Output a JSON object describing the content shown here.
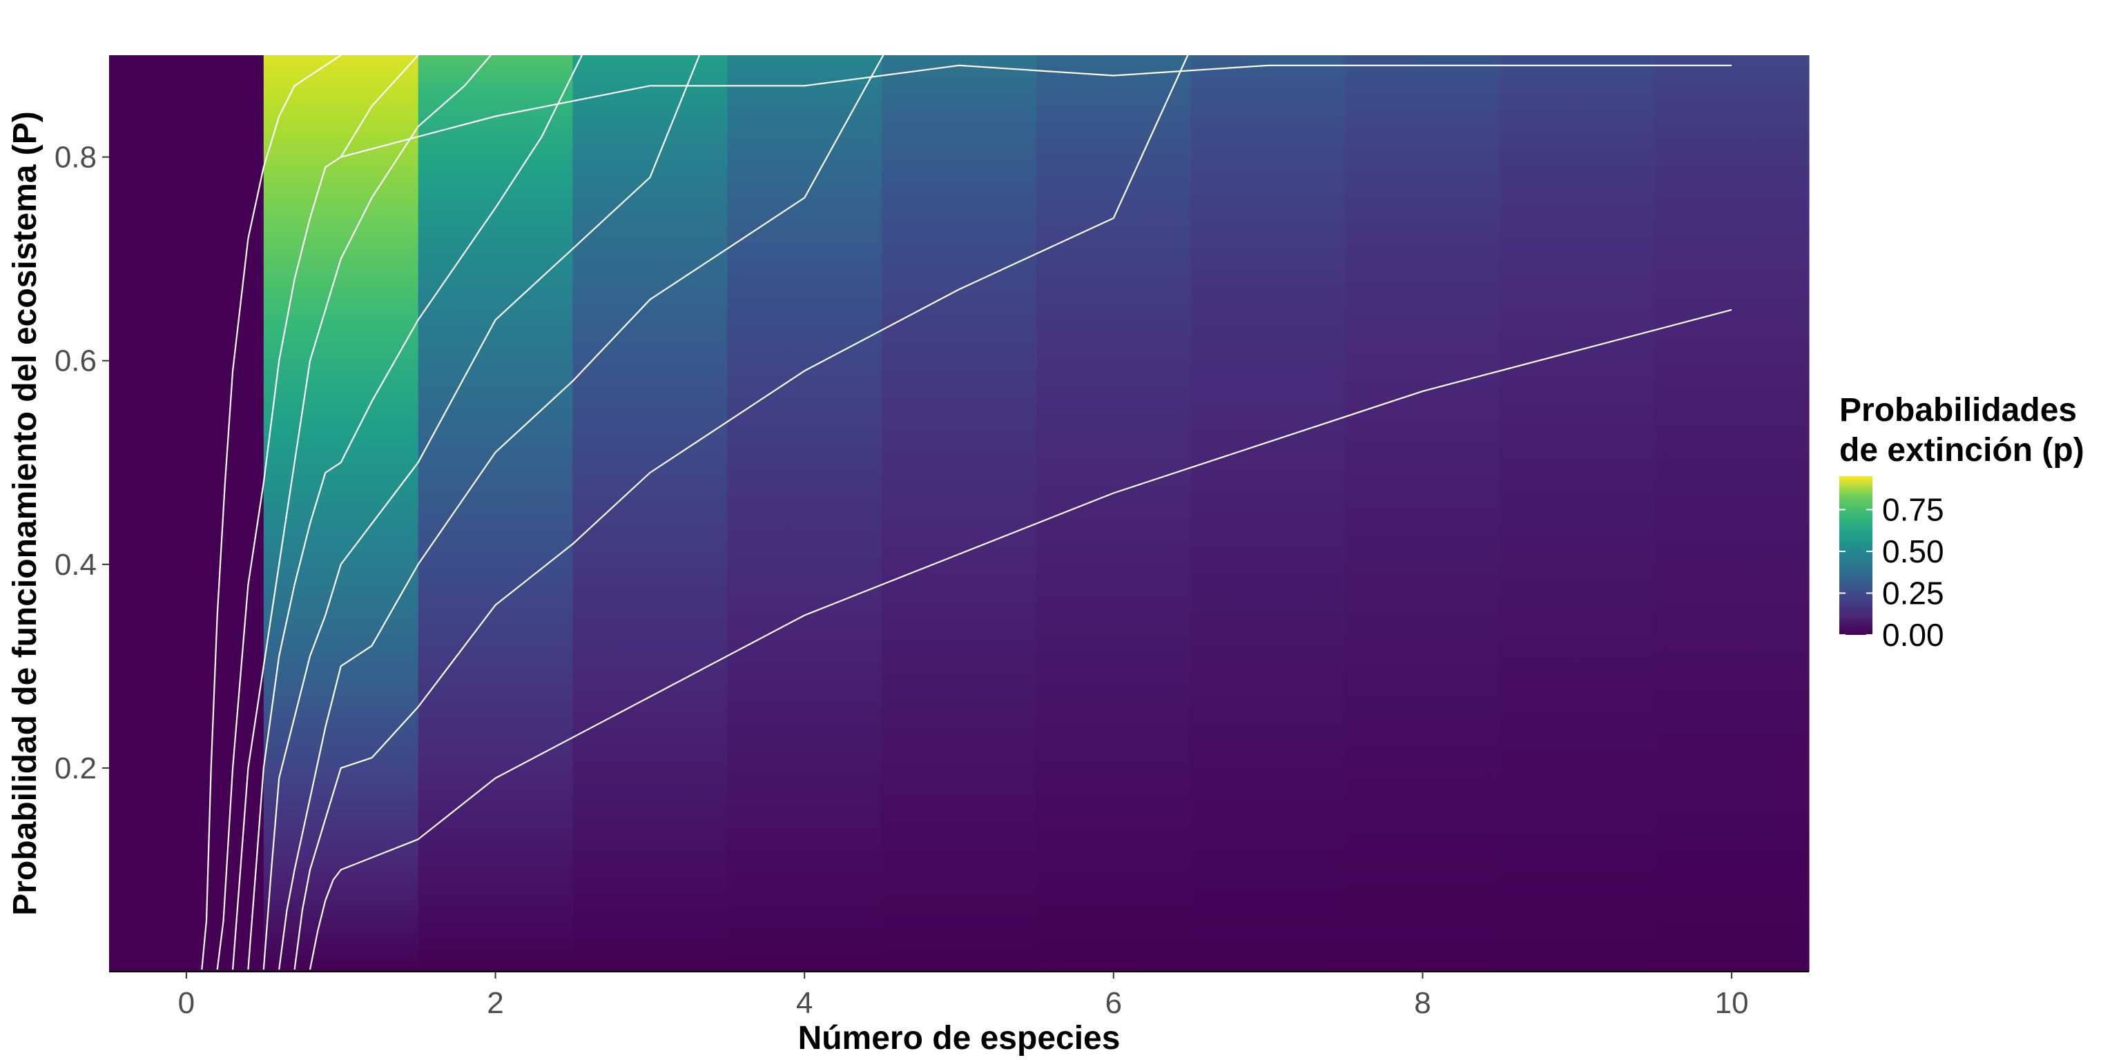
{
  "chart_data": {
    "type": "heatmap",
    "title": "",
    "xlabel": "Número de especies",
    "ylabel": "Probabilidad de funcionamiento del ecosistema (P)",
    "xlim": [
      -0.5,
      10.5
    ],
    "ylim": [
      0.0,
      0.9
    ],
    "x_ticks": [
      0,
      2,
      4,
      6,
      8,
      10
    ],
    "y_ticks": [
      0.2,
      0.4,
      0.6,
      0.8
    ],
    "x_tick_labels": [
      "0",
      "2",
      "4",
      "6",
      "8",
      "10"
    ],
    "y_tick_labels": [
      "0.2",
      "0.4",
      "0.6",
      "0.8"
    ],
    "grid": false,
    "colorscale": "viridis",
    "fill_description": "p = 1 - (1 - P)^(1/n); column n = 0 fixed at p = 0",
    "legend": {
      "title_line1": "Probabilidades",
      "title_line2": "de extinción (p)",
      "position": "right",
      "ticks": [
        0.0,
        0.25,
        0.5,
        0.75
      ],
      "tick_labels": [
        "0.00",
        "0.25",
        "0.50",
        "0.75"
      ],
      "range": [
        0.0,
        0.95
      ]
    },
    "contour_color": "#ffffff",
    "contour_lines": [
      {
        "p": 0.1,
        "x": [
          0.1,
          0.13,
          0.16,
          0.2,
          0.25,
          0.3,
          0.4,
          0.5,
          0.6,
          0.7,
          0.8,
          0.9,
          1.0
        ],
        "y": [
          0.002,
          0.05,
          0.2,
          0.35,
          0.48,
          0.59,
          0.72,
          0.79,
          0.84,
          0.87,
          0.88,
          0.89,
          0.9
        ]
      },
      {
        "p": 0.2,
        "x": [
          0.2,
          0.24,
          0.3,
          0.4,
          0.5,
          0.6,
          0.7,
          0.8,
          0.9,
          1.0,
          1.2,
          1.5
        ],
        "y": [
          0.002,
          0.05,
          0.2,
          0.38,
          0.48,
          0.6,
          0.68,
          0.74,
          0.79,
          0.8,
          0.85,
          0.9
        ]
      },
      {
        "p": 0.3,
        "x": [
          0.3,
          0.35,
          0.4,
          0.5,
          0.6,
          0.7,
          0.8,
          0.9,
          1.0,
          1.2,
          1.5,
          1.8,
          1.97
        ],
        "y": [
          0.002,
          0.1,
          0.2,
          0.3,
          0.4,
          0.5,
          0.6,
          0.65,
          0.7,
          0.76,
          0.83,
          0.87,
          0.9
        ]
      },
      {
        "p": 0.4,
        "x": [
          0.4,
          0.45,
          0.5,
          0.6,
          0.7,
          0.8,
          0.9,
          1.0,
          1.2,
          1.5,
          2.0,
          2.3,
          2.56
        ],
        "y": [
          0.002,
          0.1,
          0.2,
          0.31,
          0.38,
          0.44,
          0.49,
          0.5,
          0.56,
          0.64,
          0.75,
          0.82,
          0.9
        ]
      },
      {
        "p": 0.5,
        "x": [
          0.5,
          0.55,
          0.6,
          0.7,
          0.8,
          0.9,
          1.0,
          1.2,
          1.5,
          2.0,
          2.5,
          3.0,
          3.32
        ],
        "y": [
          0.002,
          0.1,
          0.19,
          0.25,
          0.31,
          0.35,
          0.4,
          0.44,
          0.5,
          0.64,
          0.71,
          0.78,
          0.9
        ]
      },
      {
        "p": 0.6,
        "x": [
          0.6,
          0.65,
          0.7,
          0.8,
          0.9,
          1.0,
          1.2,
          1.5,
          2.0,
          2.5,
          3.0,
          3.5,
          4.0,
          4.51
        ],
        "y": [
          0.002,
          0.06,
          0.1,
          0.17,
          0.24,
          0.3,
          0.32,
          0.4,
          0.51,
          0.58,
          0.66,
          0.71,
          0.76,
          0.9
        ]
      },
      {
        "p": 0.7,
        "x": [
          0.7,
          0.75,
          0.8,
          0.9,
          1.0,
          1.2,
          1.5,
          2.0,
          2.5,
          3.0,
          4.0,
          5.0,
          6.0,
          6.48
        ],
        "y": [
          0.002,
          0.06,
          0.1,
          0.15,
          0.2,
          0.21,
          0.26,
          0.36,
          0.42,
          0.49,
          0.59,
          0.67,
          0.74,
          0.9
        ]
      },
      {
        "p": 0.8,
        "x": [
          0.8,
          0.85,
          0.9,
          0.95,
          1.0,
          1.5,
          2.0,
          3.0,
          4.0,
          5.0,
          6.0,
          7.0,
          8.0,
          9.0,
          10.0
        ],
        "y": [
          0.002,
          0.04,
          0.07,
          0.09,
          0.1,
          0.13,
          0.19,
          0.27,
          0.35,
          0.41,
          0.47,
          0.52,
          0.57,
          0.61,
          0.65
        ]
      },
      {
        "p": 0.85,
        "x": [
          1.0,
          2.0,
          3.0,
          4.0,
          5.0,
          6.0,
          7.0,
          8.0,
          9.0,
          10.0
        ],
        "y": [
          0.8,
          0.84,
          0.87,
          0.87,
          0.89,
          0.88,
          0.89,
          0.89,
          0.89,
          0.89
        ]
      }
    ]
  }
}
